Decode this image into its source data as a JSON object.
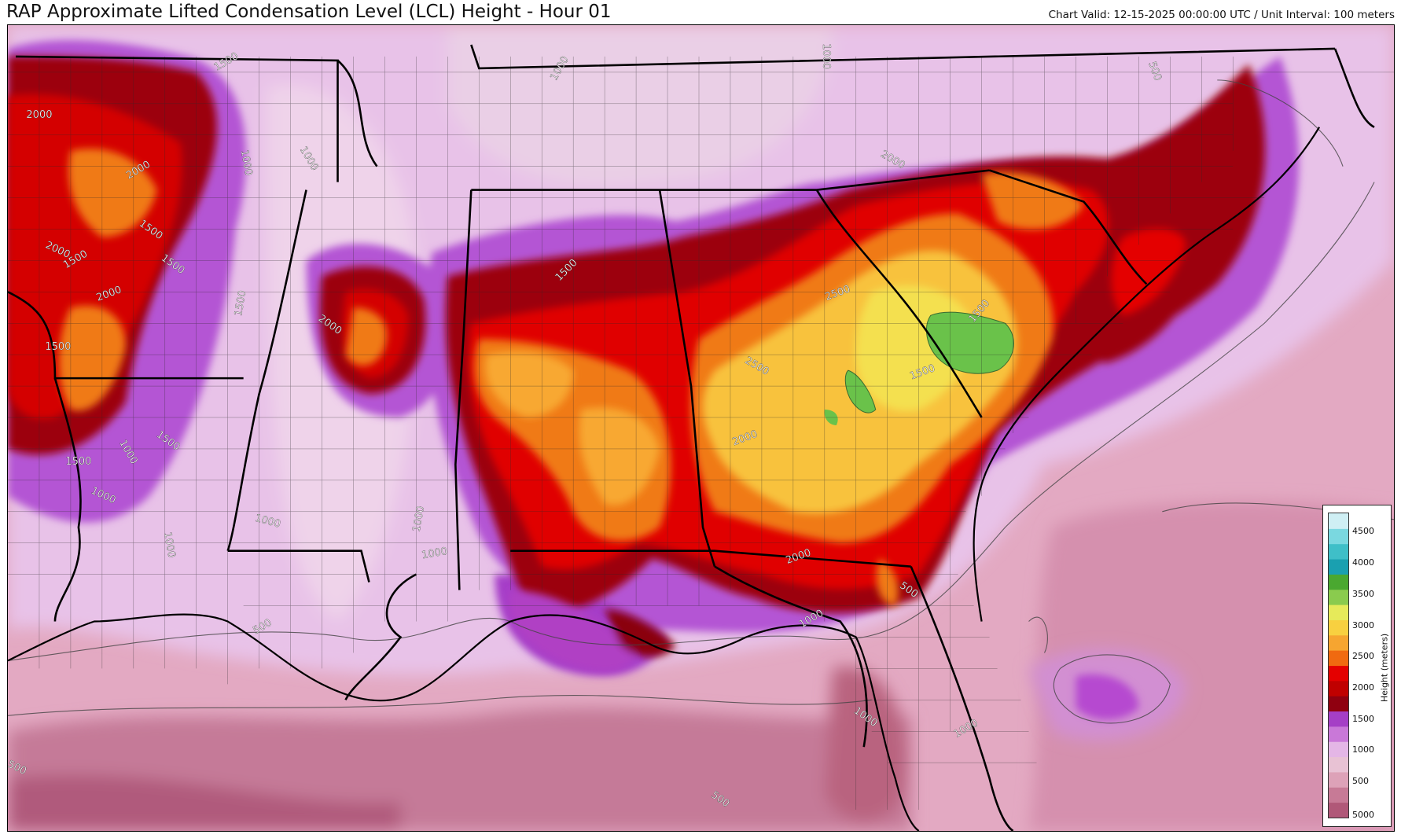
{
  "header": {
    "title": "RAP Approximate Lifted Condensation Level (LCL) Height - Hour 01",
    "subtitle": "Chart Valid: 12-15-2025 00:00:00 UTC / Unit Interval: 100 meters"
  },
  "legend": {
    "label": "Height (meters)",
    "ticks": [
      "5000",
      "500",
      "1000",
      "1500",
      "2000",
      "2500",
      "3000",
      "3500",
      "4000",
      "4500"
    ],
    "colors": [
      "#b05878",
      "#c77a96",
      "#dda2b8",
      "#e8c2d4",
      "#e4b6e6",
      "#c978d8",
      "#a53fc6",
      "#8f0010",
      "#c00000",
      "#e40000",
      "#f06a10",
      "#f6a530",
      "#f8d040",
      "#e6ea5a",
      "#8acb4e",
      "#4aa830",
      "#1aa0b0",
      "#3fbfc8",
      "#7ad8e0",
      "#cfeff4"
    ]
  },
  "map": {
    "contour_labels": [
      {
        "text": "1500",
        "region": "central-texas-panhandle"
      },
      {
        "text": "2000",
        "region": "north-texas"
      },
      {
        "text": "2000",
        "region": "central-texas"
      },
      {
        "text": "1500",
        "region": "central-texas"
      },
      {
        "text": "2000",
        "region": "west-texas"
      },
      {
        "text": "1500",
        "region": "west-texas"
      },
      {
        "text": "1500",
        "region": "central-texas"
      },
      {
        "text": "2000",
        "region": "central-texas"
      },
      {
        "text": "1500",
        "region": "central-texas"
      },
      {
        "text": "1000",
        "region": "east-texas"
      },
      {
        "text": "1500",
        "region": "east-texas"
      },
      {
        "text": "1500",
        "region": "south-texas"
      },
      {
        "text": "1000",
        "region": "south-texas"
      },
      {
        "text": "1000",
        "region": "arkansas"
      },
      {
        "text": "1000",
        "region": "arkansas"
      },
      {
        "text": "1500",
        "region": "louisiana"
      },
      {
        "text": "2000",
        "region": "mississippi"
      },
      {
        "text": "1000",
        "region": "louisiana"
      },
      {
        "text": "1000",
        "region": "louisiana"
      },
      {
        "text": "1000",
        "region": "tennessee"
      },
      {
        "text": "1500",
        "region": "alabama"
      },
      {
        "text": "1000",
        "region": "mississippi-coast"
      },
      {
        "text": "1000",
        "region": "mississippi-coast"
      },
      {
        "text": "500",
        "region": "gulf"
      },
      {
        "text": "1000",
        "region": "virginia"
      },
      {
        "text": "2000",
        "region": "north-carolina"
      },
      {
        "text": "2500",
        "region": "south-carolina"
      },
      {
        "text": "2500",
        "region": "georgia"
      },
      {
        "text": "2000",
        "region": "georgia"
      },
      {
        "text": "1500",
        "region": "south-carolina-coast"
      },
      {
        "text": "1500",
        "region": "north-carolina-coast"
      },
      {
        "text": "2000",
        "region": "georgia"
      },
      {
        "text": "1000",
        "region": "florida"
      },
      {
        "text": "500",
        "region": "atlantic"
      },
      {
        "text": "1000",
        "region": "florida"
      },
      {
        "text": "1000",
        "region": "atlantic"
      },
      {
        "text": "500",
        "region": "gulf-south"
      },
      {
        "text": "500",
        "region": "chesapeake"
      },
      {
        "text": "500",
        "region": "gulf-west-edge"
      }
    ]
  }
}
